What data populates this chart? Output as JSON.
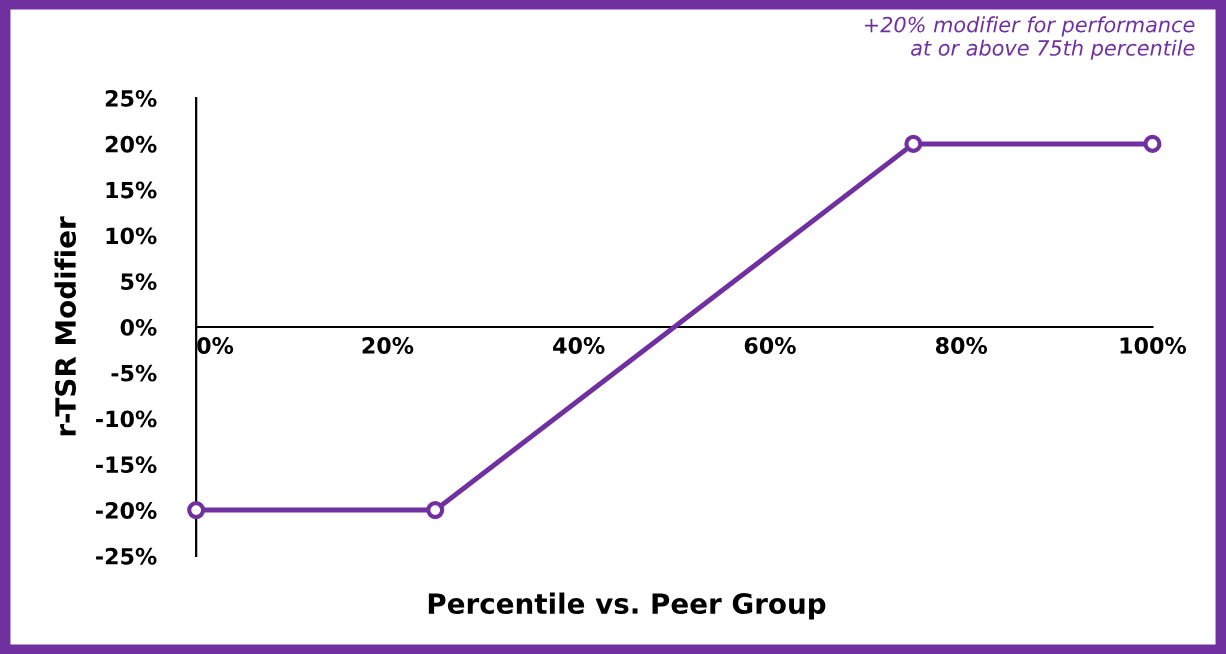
{
  "chart_data": {
    "type": "line",
    "xlabel": "Percentile vs. Peer Group",
    "ylabel": "r-TSR Modifier",
    "x": [
      0,
      25,
      75,
      100
    ],
    "series": [
      {
        "color": "#7030a0",
        "values": [
          -20,
          -20,
          20,
          20
        ]
      }
    ],
    "marker": "circle",
    "line_style": "solid",
    "grid": false,
    "legend": false,
    "xlim": [
      0,
      100
    ],
    "ylim": [
      -25,
      25
    ],
    "xticks": [
      {
        "value": 0,
        "label": "0%"
      },
      {
        "value": 20,
        "label": "20%"
      },
      {
        "value": 40,
        "label": "40%"
      },
      {
        "value": 60,
        "label": "60%"
      },
      {
        "value": 80,
        "label": "80%"
      },
      {
        "value": 100,
        "label": "100%"
      }
    ],
    "yticks": [
      {
        "value": -25,
        "label": "-25%"
      },
      {
        "value": -20,
        "label": "-20%"
      },
      {
        "value": -15,
        "label": "-15%"
      },
      {
        "value": -10,
        "label": "-10%"
      },
      {
        "value": -5,
        "label": "-5%"
      },
      {
        "value": 0,
        "label": "0%"
      },
      {
        "value": 5,
        "label": "5%"
      },
      {
        "value": 10,
        "label": "10%"
      },
      {
        "value": 15,
        "label": "15%"
      },
      {
        "value": 20,
        "label": "20%"
      },
      {
        "value": 25,
        "label": "25%"
      }
    ],
    "annotations": [
      "+20% modifier for performance\nat or above 75th percentile"
    ]
  }
}
